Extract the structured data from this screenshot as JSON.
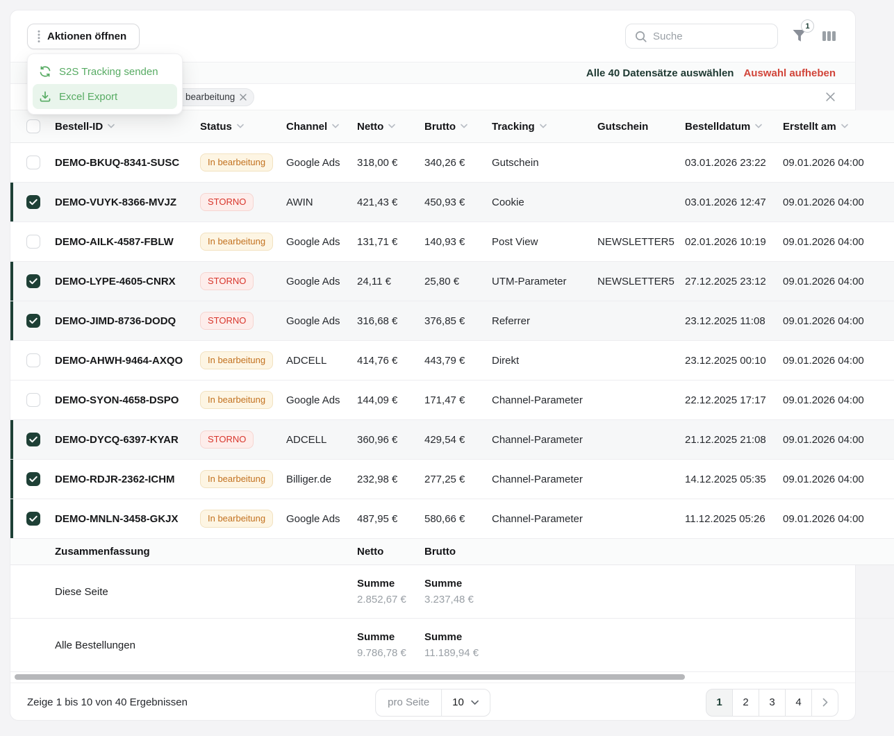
{
  "toolbar": {
    "actions_button": "Aktionen öffnen",
    "search_placeholder": "Suche",
    "filter_badge": "1"
  },
  "action_menu": {
    "items": [
      {
        "label": "S2S Tracking senden",
        "icon": "refresh-icon"
      },
      {
        "label": "Excel Export",
        "icon": "download-icon"
      }
    ]
  },
  "selection_bar": {
    "select_all": "Alle 40 Datensätze auswählen",
    "clear": "Auswahl aufheben"
  },
  "filter_bar": {
    "chip": "In bearbeitung"
  },
  "table": {
    "columns": [
      {
        "label": "Bestell-ID",
        "sortable": true
      },
      {
        "label": "Status",
        "sortable": true
      },
      {
        "label": "Channel",
        "sortable": true
      },
      {
        "label": "Netto",
        "sortable": true
      },
      {
        "label": "Brutto",
        "sortable": true
      },
      {
        "label": "Tracking",
        "sortable": true
      },
      {
        "label": "Gutschein",
        "sortable": false
      },
      {
        "label": "Bestelldatum",
        "sortable": true
      },
      {
        "label": "Erstellt am",
        "sortable": true
      }
    ],
    "rows": [
      {
        "id": "DEMO-BKUQ-8341-SUSC",
        "status": "In bearbeitung",
        "status_type": "warning",
        "channel": "Google Ads",
        "netto": "318,00 €",
        "brutto": "340,26 €",
        "tracking": "Gutschein",
        "gutschein": "",
        "bestelldatum": "03.01.2026 23:22",
        "erstellt_am": "09.01.2026 04:00",
        "checked": false,
        "shaded": false
      },
      {
        "id": "DEMO-VUYK-8366-MVJZ",
        "status": "STORNO",
        "status_type": "danger",
        "channel": "AWIN",
        "netto": "421,43 €",
        "brutto": "450,93 €",
        "tracking": "Cookie",
        "gutschein": "",
        "bestelldatum": "03.01.2026 12:47",
        "erstellt_am": "09.01.2026 04:00",
        "checked": true,
        "shaded": true
      },
      {
        "id": "DEMO-AILK-4587-FBLW",
        "status": "In bearbeitung",
        "status_type": "warning",
        "channel": "Google Ads",
        "netto": "131,71 €",
        "brutto": "140,93 €",
        "tracking": "Post View",
        "gutschein": "NEWSLETTER5",
        "bestelldatum": "02.01.2026 10:19",
        "erstellt_am": "09.01.2026 04:00",
        "checked": false,
        "shaded": false
      },
      {
        "id": "DEMO-LYPE-4605-CNRX",
        "status": "STORNO",
        "status_type": "danger",
        "channel": "Google Ads",
        "netto": "24,11 €",
        "brutto": "25,80 €",
        "tracking": "UTM-Parameter",
        "gutschein": "NEWSLETTER5",
        "bestelldatum": "27.12.2025 23:12",
        "erstellt_am": "09.01.2026 04:00",
        "checked": true,
        "shaded": true
      },
      {
        "id": "DEMO-JIMD-8736-DODQ",
        "status": "STORNO",
        "status_type": "danger",
        "channel": "Google Ads",
        "netto": "316,68 €",
        "brutto": "376,85 €",
        "tracking": "Referrer",
        "gutschein": "",
        "bestelldatum": "23.12.2025 11:08",
        "erstellt_am": "09.01.2026 04:00",
        "checked": true,
        "shaded": true
      },
      {
        "id": "DEMO-AHWH-9464-AXQO",
        "status": "In bearbeitung",
        "status_type": "warning",
        "channel": "ADCELL",
        "netto": "414,76 €",
        "brutto": "443,79 €",
        "tracking": "Direkt",
        "gutschein": "",
        "bestelldatum": "23.12.2025 00:10",
        "erstellt_am": "09.01.2026 04:00",
        "checked": false,
        "shaded": false
      },
      {
        "id": "DEMO-SYON-4658-DSPO",
        "status": "In bearbeitung",
        "status_type": "warning",
        "channel": "Google Ads",
        "netto": "144,09 €",
        "brutto": "171,47 €",
        "tracking": "Channel-Parameter",
        "gutschein": "",
        "bestelldatum": "22.12.2025 17:17",
        "erstellt_am": "09.01.2026 04:00",
        "checked": false,
        "shaded": false
      },
      {
        "id": "DEMO-DYCQ-6397-KYAR",
        "status": "STORNO",
        "status_type": "danger",
        "channel": "ADCELL",
        "netto": "360,96 €",
        "brutto": "429,54 €",
        "tracking": "Channel-Parameter",
        "gutschein": "",
        "bestelldatum": "21.12.2025 21:08",
        "erstellt_am": "09.01.2026 04:00",
        "checked": true,
        "shaded": true
      },
      {
        "id": "DEMO-RDJR-2362-ICHM",
        "status": "In bearbeitung",
        "status_type": "warning",
        "channel": "Billiger.de",
        "netto": "232,98 €",
        "brutto": "277,25 €",
        "tracking": "Channel-Parameter",
        "gutschein": "",
        "bestelldatum": "14.12.2025 05:35",
        "erstellt_am": "09.01.2026 04:00",
        "checked": true,
        "shaded": false
      },
      {
        "id": "DEMO-MNLN-3458-GKJX",
        "status": "In bearbeitung",
        "status_type": "warning",
        "channel": "Google Ads",
        "netto": "487,95 €",
        "brutto": "580,66 €",
        "tracking": "Channel-Parameter",
        "gutschein": "",
        "bestelldatum": "11.12.2025 05:26",
        "erstellt_am": "09.01.2026 04:00",
        "checked": true,
        "shaded": false
      }
    ]
  },
  "summary": {
    "title": "Zusammenfassung",
    "netto_label": "Netto",
    "brutto_label": "Brutto",
    "rows": [
      {
        "label": "Diese Seite",
        "netto_sum_label": "Summe",
        "netto_sum": "2.852,67 €",
        "brutto_sum_label": "Summe",
        "brutto_sum": "3.237,48 €"
      },
      {
        "label": "Alle Bestellungen",
        "netto_sum_label": "Summe",
        "netto_sum": "9.786,78 €",
        "brutto_sum_label": "Summe",
        "brutto_sum": "11.189,94 €"
      }
    ]
  },
  "footer": {
    "results_text": "Zeige 1 bis 10 von 40 Ergebnissen",
    "per_page_label": "pro Seite",
    "per_page_value": "10",
    "pages": [
      "1",
      "2",
      "3",
      "4"
    ],
    "active_page": "1"
  },
  "colors": {
    "accent_dark_green": "#1e4036",
    "menu_green": "#57ab63",
    "menu_highlight_bg": "#e9f5ec",
    "danger_text": "#d8362c",
    "danger_bg": "#fdedeb",
    "warning_text": "#c2711f",
    "warning_bg": "#fdf5e3",
    "clear_selection_red": "#d1453a",
    "icon_gray": "#8a8f98"
  }
}
